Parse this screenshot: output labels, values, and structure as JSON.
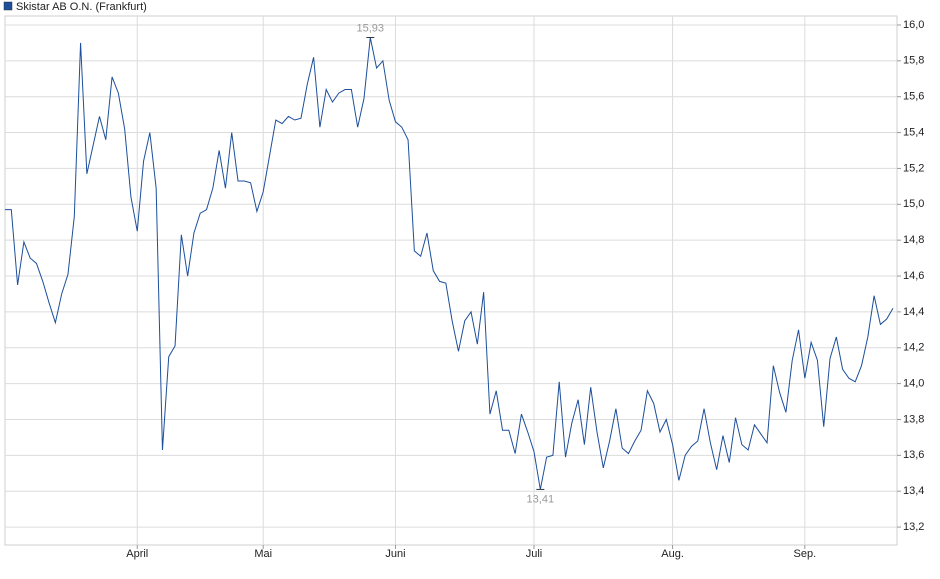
{
  "chart_data": {
    "type": "line",
    "series": [
      {
        "name": "Skistar AB O.N. (Frankfurt)",
        "color": "#1c4f9c",
        "values": [
          14.97,
          14.97,
          14.55,
          14.79,
          14.7,
          14.67,
          14.57,
          14.45,
          14.34,
          14.5,
          14.61,
          14.93,
          15.9,
          15.17,
          15.33,
          15.49,
          15.36,
          15.71,
          15.62,
          15.42,
          15.04,
          14.85,
          15.24,
          15.4,
          15.09,
          13.63,
          14.15,
          14.21,
          14.83,
          14.6,
          14.84,
          14.95,
          14.97,
          15.09,
          15.3,
          15.09,
          15.4,
          15.13,
          15.13,
          15.12,
          14.96,
          15.07,
          15.27,
          15.47,
          15.45,
          15.49,
          15.47,
          15.48,
          15.67,
          15.82,
          15.43,
          15.64,
          15.57,
          15.62,
          15.64,
          15.64,
          15.43,
          15.59,
          15.93,
          15.76,
          15.8,
          15.58,
          15.46,
          15.43,
          15.36,
          14.74,
          14.71,
          14.84,
          14.63,
          14.57,
          14.56,
          14.35,
          14.18,
          14.35,
          14.4,
          14.22,
          14.51,
          13.83,
          13.96,
          13.74,
          13.74,
          13.61,
          13.83,
          13.73,
          13.62,
          13.41,
          13.59,
          13.6,
          14.01,
          13.59,
          13.78,
          13.91,
          13.66,
          13.98,
          13.73,
          13.53,
          13.68,
          13.86,
          13.64,
          13.61,
          13.68,
          13.74,
          13.96,
          13.89,
          13.73,
          13.8,
          13.66,
          13.46,
          13.6,
          13.65,
          13.68,
          13.86,
          13.67,
          13.52,
          13.71,
          13.56,
          13.81,
          13.66,
          13.63,
          13.77,
          13.72,
          13.67,
          14.1,
          13.95,
          13.84,
          14.13,
          14.3,
          14.03,
          14.23,
          14.13,
          13.76,
          14.14,
          14.26,
          14.08,
          14.03,
          14.01,
          14.1,
          14.26,
          14.49,
          14.33,
          14.36,
          14.42
        ],
        "value_labels": [
          null,
          null,
          null,
          null,
          null,
          null,
          null,
          null,
          null,
          null,
          null,
          null,
          null,
          null,
          null,
          null,
          null,
          null,
          null,
          null,
          null,
          null,
          null,
          null,
          null,
          null,
          null,
          null,
          null,
          null,
          null,
          null,
          null,
          null,
          null,
          null,
          null,
          null,
          null,
          null,
          null,
          null,
          null,
          null,
          null,
          null,
          null,
          null,
          null,
          null,
          null,
          null,
          null,
          null,
          null,
          null,
          null,
          null,
          "15,93",
          null,
          null,
          null,
          null,
          null,
          null,
          null,
          null,
          null,
          null,
          null,
          null,
          null,
          null,
          null,
          null,
          null,
          null,
          null,
          null,
          null,
          null,
          null,
          null,
          null,
          null,
          "13,41",
          null,
          null,
          null,
          null,
          null,
          null,
          null,
          null,
          null,
          null,
          null,
          null,
          null,
          null,
          null,
          null,
          null,
          null,
          null,
          null,
          null,
          null,
          null,
          null,
          null,
          null,
          null,
          null,
          null,
          null,
          null,
          null,
          null,
          null,
          null,
          null,
          null,
          null,
          null,
          null,
          null,
          null,
          null,
          null,
          null,
          null,
          null,
          null,
          null,
          null,
          null,
          null,
          null,
          null,
          null,
          null
        ]
      }
    ],
    "categories": [
      null,
      null,
      null,
      null,
      null,
      null,
      null,
      null,
      null,
      null,
      null,
      null,
      null,
      null,
      null,
      null,
      null,
      null,
      null,
      null,
      null,
      "April",
      null,
      null,
      null,
      null,
      null,
      null,
      null,
      null,
      null,
      null,
      null,
      null,
      null,
      null,
      null,
      null,
      null,
      null,
      null,
      "Mai",
      null,
      null,
      null,
      null,
      null,
      null,
      null,
      null,
      null,
      null,
      null,
      null,
      null,
      null,
      null,
      null,
      null,
      null,
      null,
      null,
      "Juni",
      null,
      null,
      null,
      null,
      null,
      null,
      null,
      null,
      null,
      null,
      null,
      null,
      null,
      null,
      null,
      null,
      null,
      null,
      null,
      null,
      null,
      "Juli",
      null,
      null,
      null,
      null,
      null,
      null,
      null,
      null,
      null,
      null,
      null,
      null,
      null,
      null,
      null,
      null,
      null,
      null,
      null,
      null,
      null,
      "Aug.",
      null,
      null,
      null,
      null,
      null,
      null,
      null,
      null,
      null,
      null,
      null,
      null,
      null,
      null,
      null,
      null,
      null,
      null,
      null,
      null,
      "Sep.",
      null,
      null,
      null,
      null,
      null,
      null,
      null,
      null,
      null,
      null,
      null,
      null,
      null,
      null
    ],
    "ylim": [
      13.1,
      16.05
    ],
    "yticks": [
      {
        "value": 13.2,
        "label": "13,2"
      },
      {
        "value": 13.4,
        "label": "13,4"
      },
      {
        "value": 13.6,
        "label": "13,6"
      },
      {
        "value": 13.8,
        "label": "13,8"
      },
      {
        "value": 14.0,
        "label": "14,0"
      },
      {
        "value": 14.2,
        "label": "14,2"
      },
      {
        "value": 14.4,
        "label": "14,4"
      },
      {
        "value": 14.6,
        "label": "14,6"
      },
      {
        "value": 14.8,
        "label": "14,8"
      },
      {
        "value": 15.0,
        "label": "15,0"
      },
      {
        "value": 15.2,
        "label": "15,2"
      },
      {
        "value": 15.4,
        "label": "15,4"
      },
      {
        "value": 15.6,
        "label": "15,6"
      },
      {
        "value": 15.8,
        "label": "15,8"
      },
      {
        "value": 16.0,
        "label": "16,0"
      }
    ],
    "grid": true
  }
}
